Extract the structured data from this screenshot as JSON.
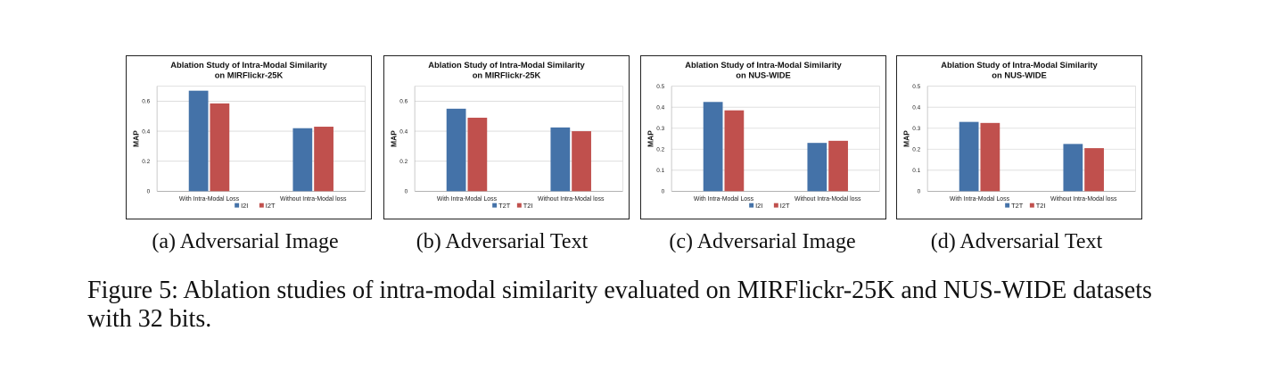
{
  "chart_data": [
    {
      "type": "bar",
      "title": "Ablation Study of Intra-Modal Similarity",
      "subtitle": "on MIRFlickr-25K",
      "ylabel": "MAP",
      "ylim": [
        0,
        0.7
      ],
      "yticks": [
        "0",
        "0.2",
        "0.4",
        "0.6"
      ],
      "ytick_values": [
        0,
        0.2,
        0.4,
        0.6
      ],
      "categories": [
        "With Intra-Modal Loss",
        "Without Intra-Modal loss"
      ],
      "series": [
        {
          "name": "I2I",
          "color": "#4472a8",
          "values": [
            0.67,
            0.42
          ]
        },
        {
          "name": "I2T",
          "color": "#c0504d",
          "values": [
            0.585,
            0.43
          ]
        }
      ],
      "grid": true,
      "legend_position": "bottom"
    },
    {
      "type": "bar",
      "title": "Ablation Study of Intra-Modal Similarity",
      "subtitle": "on MIRFlickr-25K",
      "ylabel": "MAP",
      "ylim": [
        0,
        0.7
      ],
      "yticks": [
        "0",
        "0.2",
        "0.4",
        "0.6"
      ],
      "ytick_values": [
        0,
        0.2,
        0.4,
        0.6
      ],
      "categories": [
        "With Intra-Modal Loss",
        "Without Intra-Modal loss"
      ],
      "series": [
        {
          "name": "T2T",
          "color": "#4472a8",
          "values": [
            0.55,
            0.425
          ]
        },
        {
          "name": "T2I",
          "color": "#c0504d",
          "values": [
            0.49,
            0.4
          ]
        }
      ],
      "grid": true,
      "legend_position": "bottom"
    },
    {
      "type": "bar",
      "title": "Ablation Study of Intra-Modal Similarity",
      "subtitle": "on NUS-WIDE",
      "ylabel": "MAP",
      "ylim": [
        0,
        0.5
      ],
      "yticks": [
        "0",
        "0.1",
        "0.2",
        "0.3",
        "0.4",
        "0.5"
      ],
      "ytick_values": [
        0,
        0.1,
        0.2,
        0.3,
        0.4,
        0.5
      ],
      "categories": [
        "With Intra-Modal Loss",
        "Without Intra-Modal loss"
      ],
      "series": [
        {
          "name": "I2I",
          "color": "#4472a8",
          "values": [
            0.425,
            0.23
          ]
        },
        {
          "name": "I2T",
          "color": "#c0504d",
          "values": [
            0.385,
            0.24
          ]
        }
      ],
      "grid": true,
      "legend_position": "bottom"
    },
    {
      "type": "bar",
      "title": "Ablation Study of Intra-Modal Similarity",
      "subtitle": "on NUS-WIDE",
      "ylabel": "MAP",
      "ylim": [
        0,
        0.5
      ],
      "yticks": [
        "0",
        "0.1",
        "0.2",
        "0.3",
        "0.4",
        "0.5"
      ],
      "ytick_values": [
        0,
        0.1,
        0.2,
        0.3,
        0.4,
        0.5
      ],
      "categories": [
        "With Intra-Modal Loss",
        "Without Intra-Modal loss"
      ],
      "series": [
        {
          "name": "T2T",
          "color": "#4472a8",
          "values": [
            0.33,
            0.225
          ]
        },
        {
          "name": "T2I",
          "color": "#c0504d",
          "values": [
            0.325,
            0.205
          ]
        }
      ],
      "grid": true,
      "legend_position": "bottom"
    }
  ],
  "subcaptions": [
    "(a) Adversarial Image",
    "(b) Adversarial Text",
    "(c) Adversarial Image",
    "(d) Adversarial Text"
  ],
  "figure_caption": "Figure 5: Ablation studies of intra-modal similarity evaluated on MIRFlickr-25K and NUS-WIDE datasets with 32 bits."
}
